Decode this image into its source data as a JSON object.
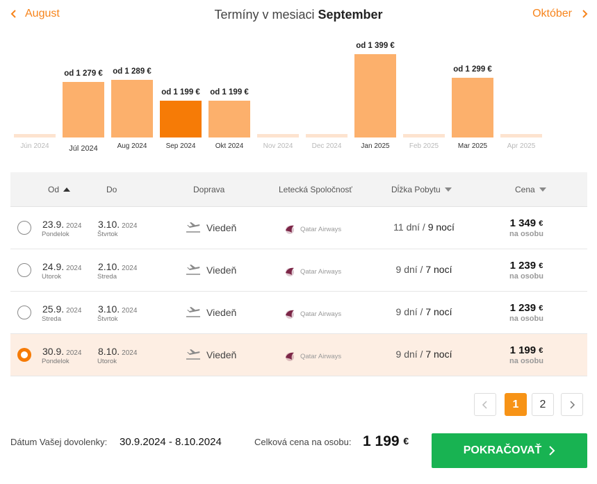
{
  "nav": {
    "prev_label": "August",
    "next_label": "Október",
    "title_prefix": "Termíny v mesiaci",
    "title_month": "September"
  },
  "price_chart": {
    "months": [
      {
        "label": "Jún 2024",
        "price": "",
        "value": null
      },
      {
        "label": "Júl 2024",
        "price": "od 1 279 €",
        "value": 1279
      },
      {
        "label": "Aug 2024",
        "price": "od 1 289 €",
        "value": 1289
      },
      {
        "label": "Sep 2024",
        "price": "od 1 199 €",
        "value": 1199,
        "selected": true
      },
      {
        "label": "Okt 2024",
        "price": "od 1 199 €",
        "value": 1199
      },
      {
        "label": "Nov 2024",
        "price": "",
        "value": null
      },
      {
        "label": "Dec 2024",
        "price": "",
        "value": null
      },
      {
        "label": "Jan 2025",
        "price": "od 1 399 €",
        "value": 1399
      },
      {
        "label": "Feb 2025",
        "price": "",
        "value": null
      },
      {
        "label": "Mar 2025",
        "price": "od 1 299 €",
        "value": 1299
      },
      {
        "label": "Apr 2025",
        "price": "",
        "value": null
      }
    ],
    "colors": {
      "bar": "#fcb06c",
      "selected": "#f67b06",
      "empty": "#fde3cf"
    }
  },
  "table": {
    "headers": {
      "from": "Od",
      "to": "Do",
      "transport": "Doprava",
      "airline": "Letecká Spoločnosť",
      "stay": "Dĺžka Pobytu",
      "price": "Cena"
    },
    "rows": [
      {
        "from": "23.9.",
        "from_year": "2024",
        "from_day": "Pondelok",
        "to": "3.10.",
        "to_year": "2024",
        "to_day": "Štvrtok",
        "transport": "Viedeň",
        "airline": "Qatar Airways",
        "days": "11 dní",
        "nights": "9 nocí",
        "price": "1 349",
        "currency": "€",
        "per_person": "na osobu",
        "selected": false
      },
      {
        "from": "24.9.",
        "from_year": "2024",
        "from_day": "Utorok",
        "to": "2.10.",
        "to_year": "2024",
        "to_day": "Streda",
        "transport": "Viedeň",
        "airline": "Qatar Airways",
        "days": "9 dní",
        "nights": "7 nocí",
        "price": "1 239",
        "currency": "€",
        "per_person": "na osobu",
        "selected": false
      },
      {
        "from": "25.9.",
        "from_year": "2024",
        "from_day": "Streda",
        "to": "3.10.",
        "to_year": "2024",
        "to_day": "Štvrtok",
        "transport": "Viedeň",
        "airline": "Qatar Airways",
        "days": "9 dní",
        "nights": "7 nocí",
        "price": "1 239",
        "currency": "€",
        "per_person": "na osobu",
        "selected": false
      },
      {
        "from": "30.9.",
        "from_year": "2024",
        "from_day": "Pondelok",
        "to": "8.10.",
        "to_year": "2024",
        "to_day": "Utorok",
        "transport": "Viedeň",
        "airline": "Qatar Airways",
        "days": "9 dní",
        "nights": "7 nocí",
        "price": "1 199",
        "currency": "€",
        "per_person": "na osobu",
        "selected": true
      }
    ]
  },
  "pagination": {
    "pages": [
      "1",
      "2"
    ],
    "current": "1"
  },
  "footer": {
    "date_label": "Dátum Vašej dovolenky:",
    "date_value": "30.9.2024 - 8.10.2024",
    "total_label": "Celková cena na osobu:",
    "total_value": "1 199",
    "total_currency": "€",
    "cta_label": "POKRAČOVAŤ"
  },
  "colors": {
    "accent": "#f7841b",
    "selected_row": "#fdeee3",
    "cta": "#18b352"
  }
}
